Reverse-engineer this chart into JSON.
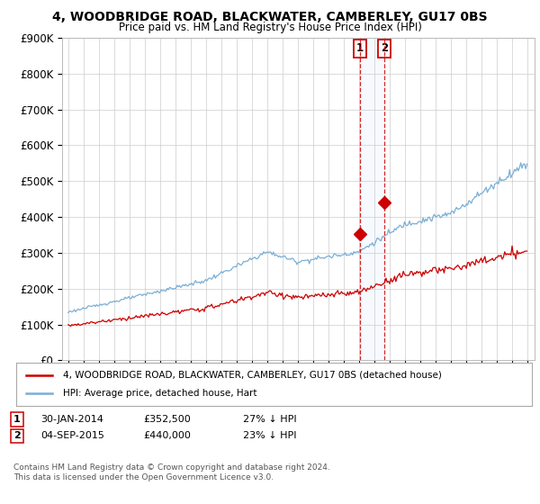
{
  "title": "4, WOODBRIDGE ROAD, BLACKWATER, CAMBERLEY, GU17 0BS",
  "subtitle": "Price paid vs. HM Land Registry's House Price Index (HPI)",
  "ylim": [
    0,
    900000
  ],
  "yticks": [
    0,
    100000,
    200000,
    300000,
    400000,
    500000,
    600000,
    700000,
    800000,
    900000
  ],
  "ytick_labels": [
    "£0",
    "£100K",
    "£200K",
    "£300K",
    "£400K",
    "£500K",
    "£600K",
    "£700K",
    "£800K",
    "£900K"
  ],
  "red_color": "#cc0000",
  "blue_color": "#7bafd4",
  "span_color": "#ddeeff",
  "transaction1_year": 2014.08,
  "transaction1_price": 352500,
  "transaction2_year": 2015.67,
  "transaction2_price": 440000,
  "legend1_label": "4, WOODBRIDGE ROAD, BLACKWATER, CAMBERLEY, GU17 0BS (detached house)",
  "legend2_label": "HPI: Average price, detached house, Hart",
  "footer1": "Contains HM Land Registry data © Crown copyright and database right 2024.",
  "footer2": "This data is licensed under the Open Government Licence v3.0.",
  "xlim_left": 1994.6,
  "xlim_right": 2025.5
}
